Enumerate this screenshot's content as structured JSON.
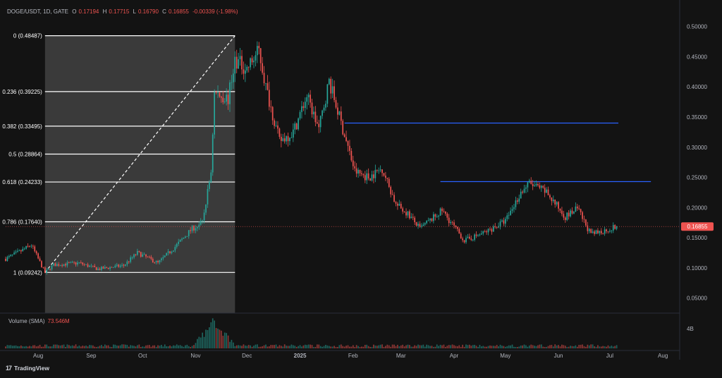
{
  "header": {
    "symbol": "DOGE/USDT, 1D, GATE",
    "open_label": "O",
    "open": "0.17194",
    "high_label": "H",
    "high": "0.17715",
    "low_label": "L",
    "low": "0.16790",
    "close_label": "C",
    "close": "0.16855",
    "change": "-0.00339 (-1.98%)"
  },
  "volume_label": {
    "name": "Volume (SMA)",
    "value": "73.546M"
  },
  "brand": {
    "logo": "17",
    "name": "TradingView"
  },
  "colors": {
    "up": "#26a69a",
    "down": "#ef5350",
    "fib_fill": "#3a3a3a",
    "line": "#2962ff",
    "background": "#131313"
  },
  "chart_data": {
    "type": "candlestick",
    "y_axis": {
      "min": 0.025,
      "max": 0.53,
      "ticks": [
        0.05,
        0.1,
        0.15,
        0.2,
        0.25,
        0.3,
        0.35,
        0.4,
        0.45,
        0.5
      ],
      "tick_labels": [
        "0.05000",
        "0.10000",
        "0.15000",
        "0.20000",
        "0.25000",
        "0.30000",
        "0.35000",
        "0.40000",
        "0.45000",
        "0.50000"
      ]
    },
    "x_axis": {
      "labels": [
        {
          "text": "Aug",
          "date": "2024-08-01"
        },
        {
          "text": "Sep",
          "date": "2024-09-01"
        },
        {
          "text": "Oct",
          "date": "2024-10-01"
        },
        {
          "text": "Nov",
          "date": "2024-11-01"
        },
        {
          "text": "Dec",
          "date": "2024-12-01"
        },
        {
          "text": "2025",
          "date": "2025-01-01"
        },
        {
          "text": "Feb",
          "date": "2025-02-01"
        },
        {
          "text": "Mar",
          "date": "2025-03-01"
        },
        {
          "text": "Apr",
          "date": "2025-04-01"
        },
        {
          "text": "May",
          "date": "2025-05-01"
        },
        {
          "text": "Jun",
          "date": "2025-06-01"
        },
        {
          "text": "Jul",
          "date": "2025-07-01"
        },
        {
          "text": "Aug",
          "date": "2025-08-01"
        }
      ],
      "start": "2024-07-13",
      "end": "2025-08-10"
    },
    "price_path": [
      {
        "date": "2024-07-13",
        "close": 0.115
      },
      {
        "date": "2024-07-22",
        "close": 0.128
      },
      {
        "date": "2024-07-28",
        "close": 0.138
      },
      {
        "date": "2024-08-05",
        "close": 0.092
      },
      {
        "date": "2024-08-10",
        "close": 0.105
      },
      {
        "date": "2024-08-25",
        "close": 0.108
      },
      {
        "date": "2024-09-05",
        "close": 0.098
      },
      {
        "date": "2024-09-20",
        "close": 0.104
      },
      {
        "date": "2024-09-28",
        "close": 0.125
      },
      {
        "date": "2024-10-10",
        "close": 0.108
      },
      {
        "date": "2024-10-20",
        "close": 0.135
      },
      {
        "date": "2024-10-30",
        "close": 0.165
      },
      {
        "date": "2024-11-05",
        "close": 0.175
      },
      {
        "date": "2024-11-10",
        "close": 0.26
      },
      {
        "date": "2024-11-12",
        "close": 0.39
      },
      {
        "date": "2024-11-20",
        "close": 0.38
      },
      {
        "date": "2024-11-24",
        "close": 0.445
      },
      {
        "date": "2024-12-01",
        "close": 0.43
      },
      {
        "date": "2024-12-08",
        "close": 0.46
      },
      {
        "date": "2024-12-12",
        "close": 0.4
      },
      {
        "date": "2024-12-20",
        "close": 0.31
      },
      {
        "date": "2024-12-28",
        "close": 0.325
      },
      {
        "date": "2025-01-05",
        "close": 0.385
      },
      {
        "date": "2025-01-12",
        "close": 0.33
      },
      {
        "date": "2025-01-18",
        "close": 0.41
      },
      {
        "date": "2025-01-25",
        "close": 0.34
      },
      {
        "date": "2025-02-02",
        "close": 0.26
      },
      {
        "date": "2025-02-10",
        "close": 0.25
      },
      {
        "date": "2025-02-18",
        "close": 0.265
      },
      {
        "date": "2025-02-26",
        "close": 0.205
      },
      {
        "date": "2025-03-05",
        "close": 0.19
      },
      {
        "date": "2025-03-12",
        "close": 0.165
      },
      {
        "date": "2025-03-25",
        "close": 0.195
      },
      {
        "date": "2025-04-07",
        "close": 0.145
      },
      {
        "date": "2025-04-20",
        "close": 0.16
      },
      {
        "date": "2025-05-01",
        "close": 0.178
      },
      {
        "date": "2025-05-10",
        "close": 0.225
      },
      {
        "date": "2025-05-15",
        "close": 0.24
      },
      {
        "date": "2025-05-25",
        "close": 0.225
      },
      {
        "date": "2025-06-05",
        "close": 0.185
      },
      {
        "date": "2025-06-12",
        "close": 0.198
      },
      {
        "date": "2025-06-20",
        "close": 0.155
      },
      {
        "date": "2025-06-28",
        "close": 0.162
      },
      {
        "date": "2025-07-05",
        "close": 0.16855
      }
    ],
    "fibonacci": {
      "start_date": "2024-08-05",
      "end_date": "2024-11-24",
      "levels": [
        {
          "ratio": "0",
          "price": 0.48487,
          "label": "0 (0.48487)"
        },
        {
          "ratio": "0.236",
          "price": 0.39225,
          "label": "0.236 (0.39225)"
        },
        {
          "ratio": "0.382",
          "price": 0.33495,
          "label": "0.382 (0.33495)"
        },
        {
          "ratio": "0.5",
          "price": 0.28864,
          "label": "0.5 (0.28864)"
        },
        {
          "ratio": "0.618",
          "price": 0.24233,
          "label": "0.618 (0.24233)"
        },
        {
          "ratio": "0.786",
          "price": 0.1764,
          "label": "0.786 (0.17640)"
        },
        {
          "ratio": "1",
          "price": 0.09242,
          "label": "1 (0.09242)"
        }
      ]
    },
    "horizontal_lines": [
      {
        "start_date": "2025-01-27",
        "end_date": "2025-07-06",
        "price": 0.34
      },
      {
        "start_date": "2025-03-24",
        "end_date": "2025-07-25",
        "price": 0.243
      }
    ],
    "last_price": {
      "value": 0.16855,
      "label": "0.16855"
    },
    "volume": {
      "axis_label": "4B",
      "axis_value": 4000000000,
      "peak_date": "2024-11-12",
      "peak_value": 4000000000
    }
  }
}
